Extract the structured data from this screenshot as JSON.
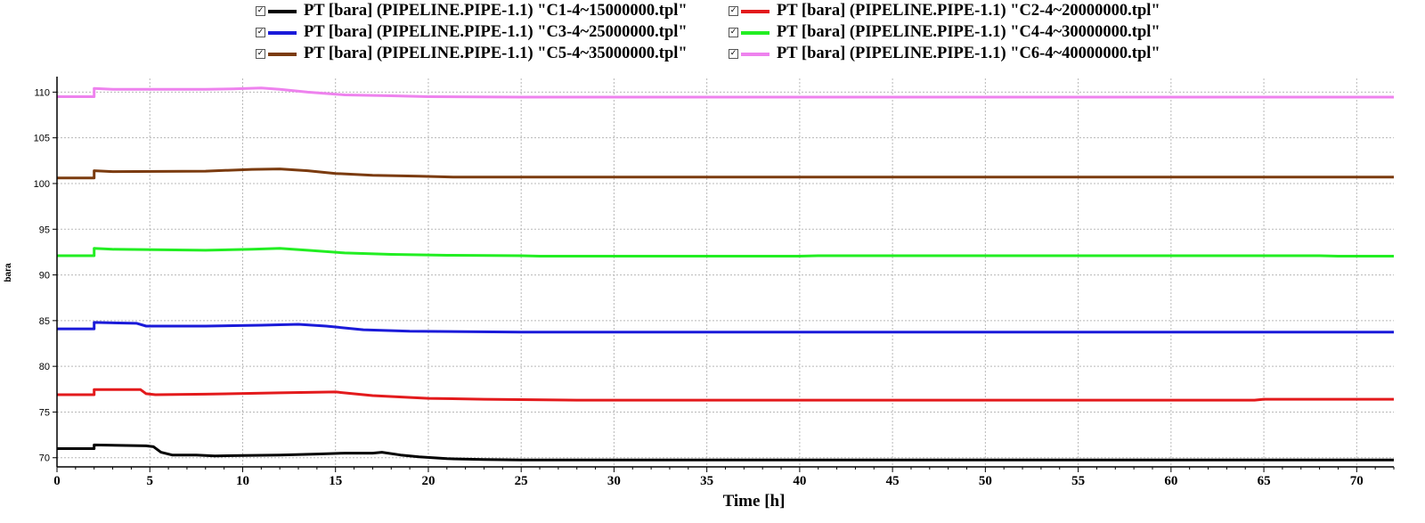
{
  "chart_data": {
    "type": "line",
    "xlabel": "Time [h]",
    "ylabel": "bara",
    "xlim": [
      0,
      72
    ],
    "ylim": [
      69,
      111.5
    ],
    "xticks": [
      0,
      5,
      10,
      15,
      20,
      25,
      30,
      35,
      40,
      45,
      50,
      55,
      60,
      65,
      70
    ],
    "yticks": [
      70,
      75,
      80,
      85,
      90,
      95,
      100,
      105,
      110
    ],
    "grid": true,
    "legend_position": "top",
    "series": [
      {
        "name": "PT [bara] (PIPELINE.PIPE-1.1) \"C1-4~15000000.tpl\"",
        "color": "#000000",
        "x": [
          0,
          2,
          2,
          4.8,
          5.2,
          5.6,
          6.2,
          7.5,
          8.5,
          10,
          12,
          14,
          15.5,
          17,
          17.5,
          18.5,
          19.5,
          21,
          23,
          25,
          72
        ],
        "y": [
          71.0,
          71.0,
          71.4,
          71.3,
          71.2,
          70.6,
          70.3,
          70.3,
          70.2,
          70.25,
          70.3,
          70.4,
          70.5,
          70.5,
          70.6,
          70.3,
          70.1,
          69.9,
          69.8,
          69.75,
          69.75
        ]
      },
      {
        "name": "PT [bara] (PIPELINE.PIPE-1.1) \"C2-4~20000000.tpl\"",
        "color": "#e31a1c",
        "x": [
          0,
          2,
          2,
          4.5,
          4.8,
          5.3,
          8,
          12,
          15,
          17,
          20,
          23,
          28,
          40,
          64.5,
          65,
          72
        ],
        "y": [
          76.9,
          76.9,
          77.45,
          77.45,
          77.0,
          76.9,
          76.95,
          77.1,
          77.2,
          76.8,
          76.5,
          76.4,
          76.3,
          76.3,
          76.3,
          76.4,
          76.4
        ]
      },
      {
        "name": "PT [bara] (PIPELINE.PIPE-1.1) \"C3-4~25000000.tpl\"",
        "color": "#1a1ad9",
        "x": [
          0,
          2,
          2,
          4.3,
          4.8,
          8,
          11,
          13,
          14.5,
          16.5,
          19,
          22,
          25,
          72
        ],
        "y": [
          84.1,
          84.1,
          84.8,
          84.7,
          84.4,
          84.4,
          84.5,
          84.6,
          84.4,
          84.0,
          83.85,
          83.8,
          83.75,
          83.75
        ]
      },
      {
        "name": "PT [bara] (PIPELINE.PIPE-1.1) \"C4-4~30000000.tpl\"",
        "color": "#22ee22",
        "x": [
          0,
          2,
          2,
          3,
          8,
          10.5,
          12,
          13.5,
          15.5,
          18,
          21,
          25,
          26,
          40,
          41,
          68,
          69,
          72
        ],
        "y": [
          92.1,
          92.1,
          92.9,
          92.8,
          92.7,
          92.8,
          92.9,
          92.7,
          92.4,
          92.25,
          92.15,
          92.1,
          92.05,
          92.05,
          92.1,
          92.1,
          92.05,
          92.05
        ]
      },
      {
        "name": "PT [bara] (PIPELINE.PIPE-1.1) \"C5-4~35000000.tpl\"",
        "color": "#7b3b0f",
        "x": [
          0,
          2,
          2,
          3,
          8,
          10.5,
          12,
          13.5,
          15,
          17,
          19.5,
          21.5,
          72
        ],
        "y": [
          100.6,
          100.6,
          101.4,
          101.3,
          101.35,
          101.55,
          101.6,
          101.4,
          101.1,
          100.9,
          100.8,
          100.7,
          100.7
        ]
      },
      {
        "name": "PT [bara] (PIPELINE.PIPE-1.1) \"C6-4~40000000.tpl\"",
        "color": "#ee82ee",
        "x": [
          0,
          2,
          2,
          3,
          8,
          9.5,
          11,
          12,
          13.5,
          15.5,
          18,
          20,
          25,
          72
        ],
        "y": [
          109.5,
          109.5,
          110.4,
          110.3,
          110.3,
          110.35,
          110.45,
          110.3,
          110.0,
          109.7,
          109.6,
          109.5,
          109.45,
          109.45
        ]
      }
    ]
  }
}
